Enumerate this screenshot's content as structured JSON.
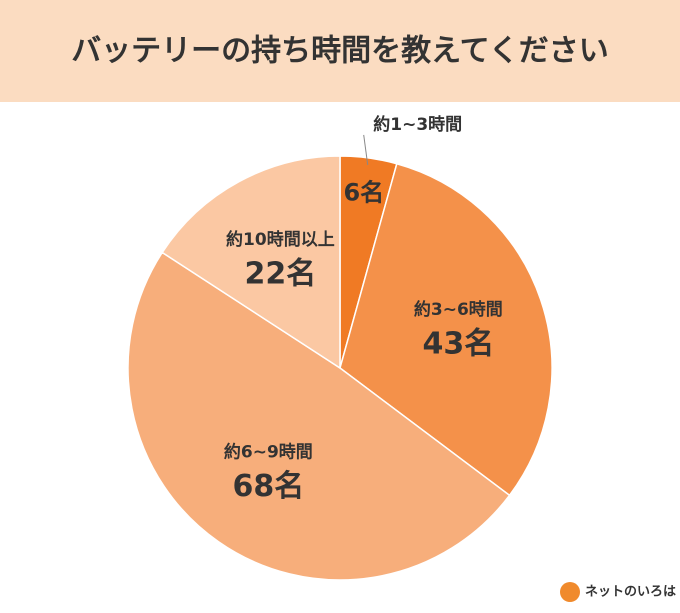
{
  "chart_data": {
    "type": "pie",
    "title": "バッテリーの持ち時間を教えてください",
    "categories": [
      "約1~3時間",
      "約3~6時間",
      "約6~9時間",
      "約10時間以上"
    ],
    "values": [
      6,
      43,
      68,
      22
    ],
    "value_labels": [
      "6名",
      "43名",
      "68名",
      "22名"
    ],
    "colors": [
      "#f07a24",
      "#f4914a",
      "#f7ae7b",
      "#fbc8a3"
    ]
  },
  "brand": "ネットのいろは"
}
